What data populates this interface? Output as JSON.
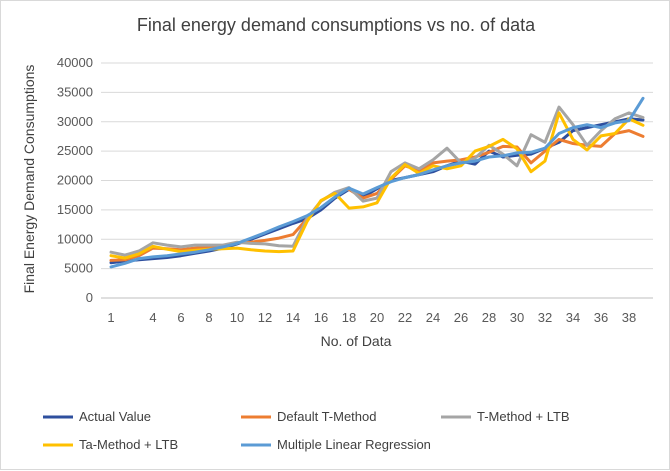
{
  "chart_data": {
    "type": "line",
    "title": "Final energy demand consumptions vs no. of data",
    "xlabel": "No. of Data",
    "ylabel": "Final Energy Demand Consumptions",
    "ylim": [
      0,
      40000
    ],
    "y_ticks": [
      "0",
      "5000",
      "10000",
      "15000",
      "20000",
      "25000",
      "30000",
      "35000",
      "40000"
    ],
    "x": [
      1,
      2,
      3,
      4,
      5,
      6,
      7,
      8,
      9,
      10,
      11,
      12,
      13,
      14,
      15,
      16,
      17,
      18,
      19,
      20,
      21,
      22,
      23,
      24,
      25,
      26,
      27,
      28,
      29,
      30,
      31,
      32,
      33,
      34,
      35,
      36,
      37,
      38,
      39
    ],
    "x_tick_labels": [
      "1",
      "4",
      "6",
      "8",
      "10",
      "12",
      "14",
      "16",
      "18",
      "20",
      "22",
      "24",
      "26",
      "28",
      "30",
      "32",
      "34",
      "36",
      "38"
    ],
    "x_tick_values": [
      1,
      4,
      6,
      8,
      10,
      12,
      14,
      16,
      18,
      20,
      22,
      24,
      26,
      28,
      30,
      32,
      34,
      36,
      38
    ],
    "grid": "horizontal",
    "legend_position": "bottom",
    "series": [
      {
        "name": "Actual Value",
        "color": "#2e4f9e",
        "values": [
          6000,
          6300,
          6500,
          6700,
          6900,
          7200,
          7600,
          8000,
          8500,
          9200,
          10000,
          10900,
          11800,
          12700,
          13500,
          15000,
          17000,
          18500,
          17200,
          18600,
          20000,
          20500,
          21000,
          21500,
          22500,
          23300,
          22800,
          25000,
          24000,
          24300,
          24500,
          25500,
          26500,
          28500,
          29000,
          29500,
          30000,
          30500,
          30300
        ]
      },
      {
        "name": "Default T-Method",
        "color": "#ed7d31",
        "values": [
          6400,
          6500,
          7200,
          8500,
          8400,
          8200,
          8500,
          8600,
          8800,
          9400,
          9500,
          9800,
          10200,
          10800,
          13500,
          16500,
          18000,
          18500,
          17000,
          17800,
          20200,
          22500,
          21700,
          23000,
          23300,
          23500,
          24000,
          24800,
          25800,
          25700,
          23000,
          25000,
          27000,
          26300,
          26000,
          25800,
          28000,
          28500,
          27500
        ]
      },
      {
        "name": "T-Method + LTB",
        "color": "#a5a5a5",
        "values": [
          7800,
          7300,
          8000,
          9400,
          9000,
          8700,
          9000,
          9000,
          9000,
          9500,
          9300,
          9200,
          8900,
          8800,
          13500,
          16500,
          18000,
          18800,
          16500,
          17000,
          21500,
          23000,
          22000,
          23500,
          25500,
          23000,
          23800,
          26000,
          24500,
          22500,
          27800,
          26500,
          32500,
          29500,
          26000,
          28500,
          30500,
          31500,
          30700
        ]
      },
      {
        "name": "Ta-Method + LTB",
        "color": "#ffc000",
        "values": [
          7200,
          6800,
          7500,
          8800,
          8300,
          7900,
          8100,
          8300,
          8400,
          8500,
          8200,
          8000,
          7900,
          8000,
          13000,
          16600,
          17800,
          15300,
          15500,
          16200,
          20400,
          22700,
          21200,
          22500,
          22000,
          22500,
          25000,
          25800,
          27000,
          25400,
          21500,
          23300,
          31500,
          27000,
          25200,
          27600,
          28000,
          30500,
          29400
        ]
      },
      {
        "name": "Multiple Linear Regression",
        "color": "#5b9bd5",
        "values": [
          5300,
          5900,
          6700,
          7000,
          7200,
          7500,
          7800,
          8200,
          8700,
          9300,
          10200,
          11100,
          12100,
          13000,
          14000,
          15400,
          17200,
          18700,
          17700,
          18800,
          19800,
          20500,
          21000,
          21800,
          22500,
          23000,
          23300,
          24000,
          24200,
          24700,
          24800,
          25500,
          28000,
          29000,
          29500,
          29000,
          29800,
          30200,
          34000
        ]
      }
    ]
  }
}
